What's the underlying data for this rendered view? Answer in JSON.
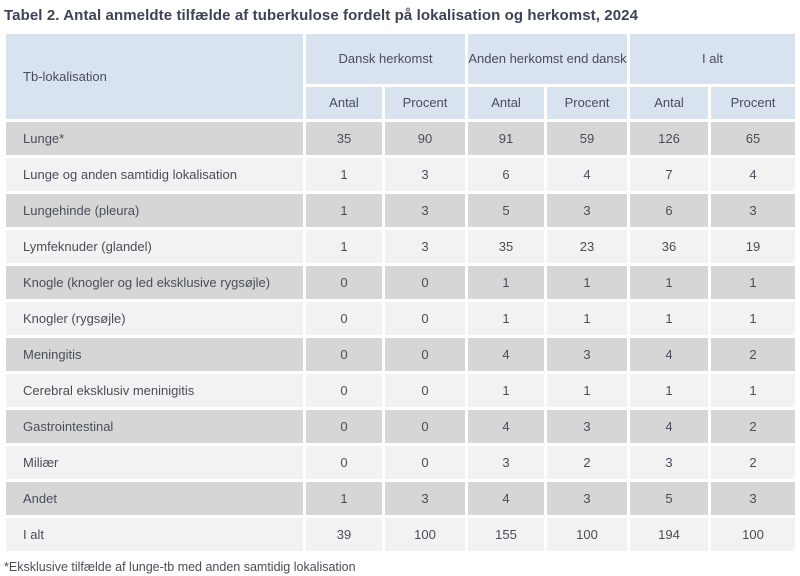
{
  "title": "Tabel 2. Antal anmeldte tilfælde af tuberkulose fordelt på lokalisation og herkomst, 2024",
  "table": {
    "row_header": "Tb-lokalisation",
    "col_groups": [
      {
        "label": "Dansk herkomst"
      },
      {
        "label": "Anden herkomst end dansk"
      },
      {
        "label": "I alt"
      }
    ],
    "sub_headers": [
      "Antal",
      "Procent",
      "Antal",
      "Procent",
      "Antal",
      "Procent"
    ],
    "rows": [
      {
        "label": "Lunge*",
        "values": [
          "35",
          "90",
          "91",
          "59",
          "126",
          "65"
        ]
      },
      {
        "label": "Lunge og anden samtidig lokalisation",
        "values": [
          "1",
          "3",
          "6",
          "4",
          "7",
          "4"
        ]
      },
      {
        "label": "Lungehinde (pleura)",
        "values": [
          "1",
          "3",
          "5",
          "3",
          "6",
          "3"
        ]
      },
      {
        "label": "Lymfeknuder (glandel)",
        "values": [
          "1",
          "3",
          "35",
          "23",
          "36",
          "19"
        ]
      },
      {
        "label": "Knogle (knogler og led eksklusive rygsøjle)",
        "values": [
          "0",
          "0",
          "1",
          "1",
          "1",
          "1"
        ]
      },
      {
        "label": "Knogler (rygsøjle)",
        "values": [
          "0",
          "0",
          "1",
          "1",
          "1",
          "1"
        ]
      },
      {
        "label": "Meningitis",
        "values": [
          "0",
          "0",
          "4",
          "3",
          "4",
          "2"
        ]
      },
      {
        "label": "Cerebral eksklusiv meninigitis",
        "values": [
          "0",
          "0",
          "1",
          "1",
          "1",
          "1"
        ]
      },
      {
        "label": "Gastrointestinal",
        "values": [
          "0",
          "0",
          "4",
          "3",
          "4",
          "2"
        ]
      },
      {
        "label": "Miliær",
        "values": [
          "0",
          "0",
          "3",
          "2",
          "3",
          "2"
        ]
      },
      {
        "label": "Andet",
        "values": [
          "1",
          "3",
          "4",
          "3",
          "5",
          "3"
        ]
      },
      {
        "label": "I alt",
        "values": [
          "39",
          "100",
          "155",
          "100",
          "194",
          "100"
        ]
      }
    ]
  },
  "footnote": "*Eksklusive tilfælde af lunge-tb med anden samtidig lokalisation",
  "colors": {
    "header_bg": "#d9e3f0",
    "row_odd_bg": "#d6d6d6",
    "row_even_bg": "#f2f2f2",
    "title_color": "#3e4254",
    "text_color": "#4a4d58",
    "page_bg": "#ffffff"
  }
}
